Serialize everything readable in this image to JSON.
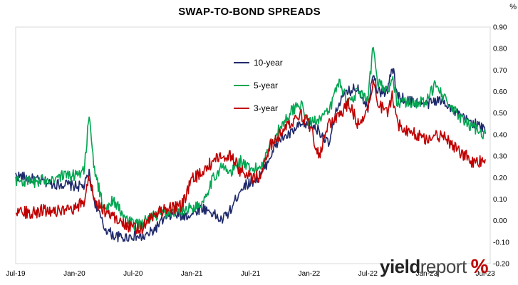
{
  "chart_data": {
    "type": "line",
    "title": "SWAP-TO-BOND SPREADS",
    "unit_label": "%",
    "x_tick_labels": [
      "Jul-19",
      "Jan-20",
      "Jul-20",
      "Jan-21",
      "Jul-21",
      "Jan-22",
      "Jul-22",
      "Jan-23",
      "Jul-23"
    ],
    "x_range_months": [
      0,
      48.5
    ],
    "y_tick_labels": [
      "0.90",
      "0.80",
      "0.70",
      "0.60",
      "0.50",
      "0.40",
      "0.30",
      "0.20",
      "0.10",
      "0.00",
      "-0.10",
      "-0.20"
    ],
    "ylim": [
      -0.2,
      0.9
    ],
    "y_axis_side": "right",
    "grid": false,
    "legend_position": "upper-middle",
    "legend": [
      "10-year",
      "5-year",
      "3-year"
    ],
    "colors": {
      "10-year": "#1f2a6b",
      "5-year": "#00a651",
      "3-year": "#c00000"
    },
    "series": [
      {
        "name": "10-year",
        "x_months": [
          0,
          1,
          2,
          3,
          4,
          5,
          6,
          7,
          7.5,
          8,
          9,
          10,
          11,
          12,
          13,
          14,
          15,
          16,
          17,
          18,
          19,
          20,
          21,
          22,
          23,
          24,
          25,
          26,
          27,
          28,
          29,
          30,
          31,
          32,
          33,
          34,
          35,
          36,
          36.5,
          37,
          38,
          38.5,
          39,
          40,
          41,
          42,
          43,
          44,
          45,
          46,
          47,
          48
        ],
        "values": [
          0.21,
          0.2,
          0.19,
          0.18,
          0.17,
          0.17,
          0.16,
          0.16,
          0.22,
          0.1,
          -0.03,
          -0.07,
          -0.08,
          -0.07,
          -0.08,
          -0.05,
          0.0,
          0.03,
          0.02,
          0.03,
          0.06,
          0.04,
          0.0,
          0.05,
          0.15,
          0.18,
          0.2,
          0.3,
          0.38,
          0.4,
          0.44,
          0.45,
          0.42,
          0.35,
          0.55,
          0.6,
          0.62,
          0.52,
          0.7,
          0.6,
          0.6,
          0.72,
          0.58,
          0.56,
          0.55,
          0.54,
          0.56,
          0.55,
          0.5,
          0.47,
          0.45,
          0.42
        ]
      },
      {
        "name": "5-year",
        "x_months": [
          0,
          1,
          2,
          3,
          4,
          5,
          6,
          7,
          7.5,
          8,
          9,
          10,
          11,
          12,
          13,
          14,
          15,
          16,
          17,
          18,
          19,
          20,
          21,
          22,
          23,
          24,
          25,
          26,
          27,
          28,
          29,
          30,
          31,
          32,
          33,
          34,
          35,
          36,
          36.5,
          37,
          38,
          38.5,
          39,
          40,
          41,
          42,
          43,
          44,
          45,
          46,
          47,
          48
        ],
        "values": [
          0.19,
          0.18,
          0.18,
          0.19,
          0.2,
          0.21,
          0.21,
          0.24,
          0.48,
          0.25,
          0.05,
          0.1,
          0.02,
          -0.02,
          -0.01,
          0.02,
          0.03,
          0.04,
          0.05,
          0.06,
          0.08,
          0.18,
          0.25,
          0.22,
          0.28,
          0.23,
          0.25,
          0.35,
          0.43,
          0.5,
          0.55,
          0.45,
          0.48,
          0.5,
          0.65,
          0.55,
          0.6,
          0.55,
          0.8,
          0.65,
          0.6,
          0.66,
          0.55,
          0.55,
          0.55,
          0.55,
          0.65,
          0.55,
          0.5,
          0.45,
          0.43,
          0.4
        ]
      },
      {
        "name": "3-year",
        "x_months": [
          0,
          1,
          2,
          3,
          4,
          5,
          6,
          7,
          7.5,
          8,
          9,
          10,
          11,
          12,
          13,
          14,
          15,
          16,
          17,
          18,
          19,
          20,
          21,
          22,
          23,
          24,
          25,
          26,
          27,
          28,
          29,
          30,
          31,
          32,
          33,
          34,
          35,
          36,
          36.5,
          37,
          38,
          38.5,
          39,
          40,
          41,
          42,
          43,
          44,
          45,
          46,
          47,
          48
        ],
        "values": [
          0.05,
          0.04,
          0.04,
          0.05,
          0.05,
          0.04,
          0.05,
          0.09,
          0.21,
          0.1,
          0.05,
          0.02,
          -0.01,
          -0.04,
          -0.03,
          0.02,
          0.05,
          0.06,
          0.07,
          0.19,
          0.22,
          0.27,
          0.3,
          0.3,
          0.23,
          0.2,
          0.21,
          0.35,
          0.4,
          0.45,
          0.5,
          0.45,
          0.3,
          0.45,
          0.48,
          0.55,
          0.45,
          0.52,
          0.65,
          0.55,
          0.5,
          0.58,
          0.45,
          0.42,
          0.4,
          0.38,
          0.4,
          0.38,
          0.33,
          0.3,
          0.26,
          0.29
        ]
      }
    ]
  },
  "brand": {
    "part1": "yield",
    "part2": "report",
    "part3": "%"
  }
}
